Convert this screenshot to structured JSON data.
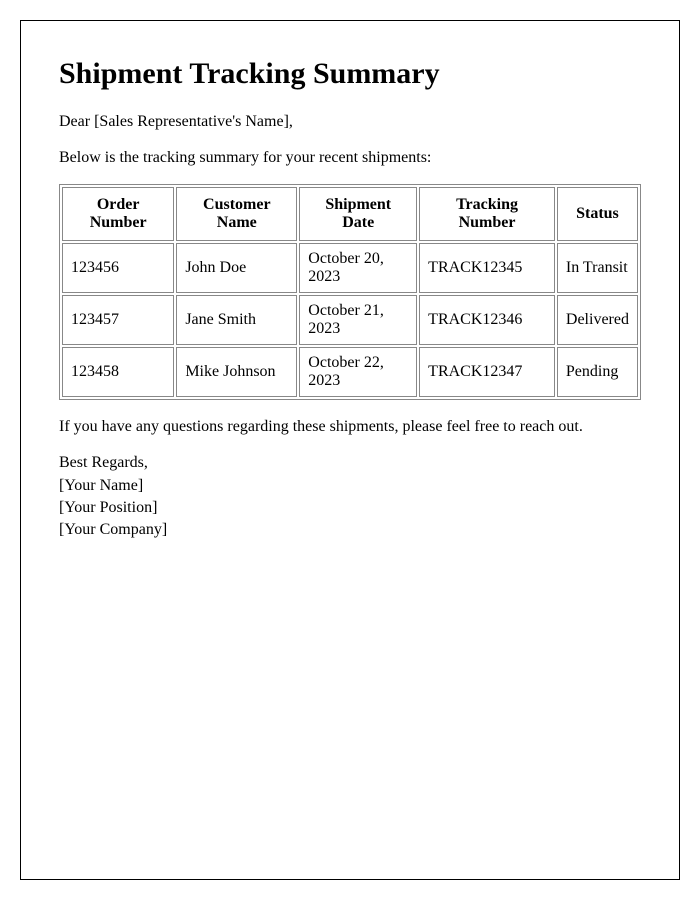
{
  "title": "Shipment Tracking Summary",
  "greeting": "Dear [Sales Representative's Name],",
  "intro": "Below is the tracking summary for your recent shipments:",
  "table": {
    "columns": [
      "Order Number",
      "Customer Name",
      "Shipment Date",
      "Tracking Number",
      "Status"
    ],
    "rows": [
      [
        "123456",
        "John Doe",
        "October 20, 2023",
        "TRACK12345",
        "In Transit"
      ],
      [
        "123457",
        "Jane Smith",
        "October 21, 2023",
        "TRACK12346",
        "Delivered"
      ],
      [
        "123458",
        "Mike Johnson",
        "October 22, 2023",
        "TRACK12347",
        "Pending"
      ]
    ]
  },
  "followup": "If you have any questions regarding these shipments, please feel free to reach out.",
  "closing": {
    "regards": "Best Regards,",
    "name": "[Your Name]",
    "position": "[Your Position]",
    "company": "[Your Company]"
  }
}
